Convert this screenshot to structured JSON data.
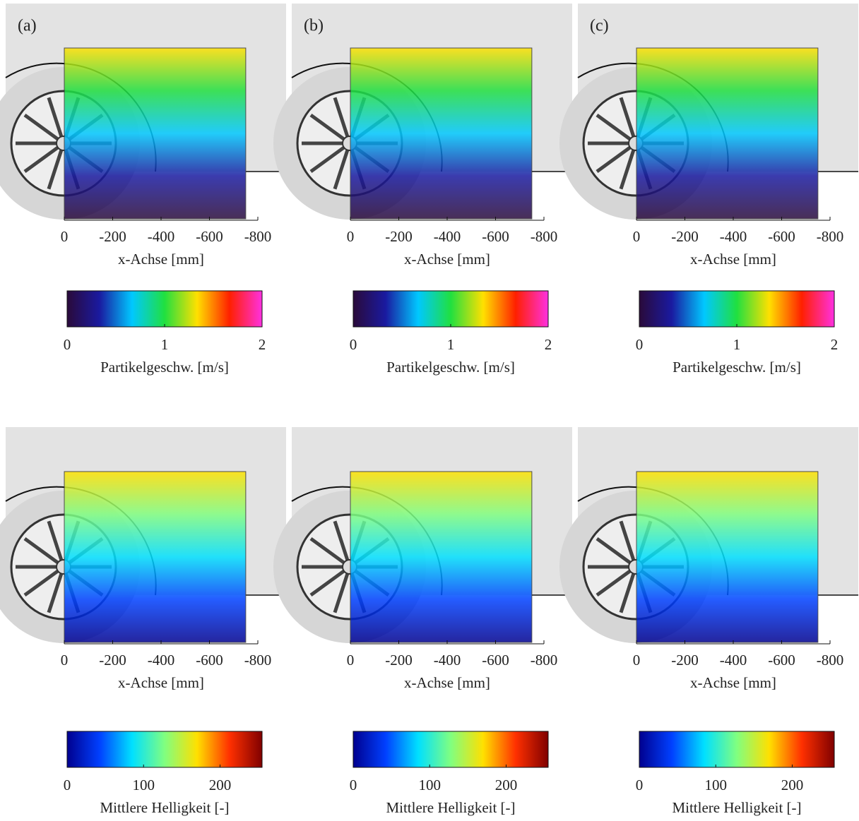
{
  "panels": [
    {
      "label": "(a)",
      "xlim": [
        0,
        -800
      ],
      "xticks": [
        0,
        -200,
        -400,
        -600,
        -800
      ],
      "xlabel": "x-Achse [mm]",
      "colorbar": {
        "clim": [
          0,
          2
        ],
        "ticks": [
          0,
          1,
          2
        ],
        "label": "Partikelgeschw. [m/s]",
        "colormap": [
          "#2a0a3a",
          "#1a1aa0",
          "#00c8ff",
          "#20e040",
          "#ffe000",
          "#ff2000",
          "#ff30e0"
        ]
      }
    },
    {
      "label": "(b)",
      "xlim": [
        0,
        -800
      ],
      "xticks": [
        0,
        -200,
        -400,
        -600,
        -800
      ],
      "xlabel": "x-Achse [mm]",
      "colorbar": {
        "clim": [
          0,
          2
        ],
        "ticks": [
          0,
          1,
          2
        ],
        "label": "Partikelgeschw. [m/s]",
        "colormap": [
          "#2a0a3a",
          "#1a1aa0",
          "#00c8ff",
          "#20e040",
          "#ffe000",
          "#ff2000",
          "#ff30e0"
        ]
      }
    },
    {
      "label": "(c)",
      "xlim": [
        0,
        -800
      ],
      "xticks": [
        0,
        -200,
        -400,
        -600,
        -800
      ],
      "xlabel": "x-Achse [mm]",
      "colorbar": {
        "clim": [
          0,
          2
        ],
        "ticks": [
          0,
          1,
          2
        ],
        "label": "Partikelgeschw. [m/s]",
        "colormap": [
          "#2a0a3a",
          "#1a1aa0",
          "#00c8ff",
          "#20e040",
          "#ffe000",
          "#ff2000",
          "#ff30e0"
        ]
      }
    },
    {
      "xlim": [
        0,
        -800
      ],
      "xticks": [
        0,
        -200,
        -400,
        -600,
        -800
      ],
      "xlabel": "x-Achse [mm]",
      "colorbar": {
        "clim": [
          0,
          255
        ],
        "ticks": [
          0,
          100,
          200
        ],
        "label": "Mittlere Helligkeit [-]",
        "colormap": [
          "#00008f",
          "#0040ff",
          "#00e0ff",
          "#80ff80",
          "#ffe000",
          "#ff3000",
          "#800000"
        ]
      }
    },
    {
      "xlim": [
        0,
        -800
      ],
      "xticks": [
        0,
        -200,
        -400,
        -600,
        -800
      ],
      "xlabel": "x-Achse [mm]",
      "colorbar": {
        "clim": [
          0,
          255
        ],
        "ticks": [
          0,
          100,
          200
        ],
        "label": "Mittlere Helligkeit [-]",
        "colormap": [
          "#00008f",
          "#0040ff",
          "#00e0ff",
          "#80ff80",
          "#ffe000",
          "#ff3000",
          "#800000"
        ]
      }
    },
    {
      "xlim": [
        0,
        -800
      ],
      "xticks": [
        0,
        -200,
        -400,
        -600,
        -800
      ],
      "xlabel": "x-Achse [mm]",
      "colorbar": {
        "clim": [
          0,
          255
        ],
        "ticks": [
          0,
          100,
          200
        ],
        "label": "Mittlere Helligkeit [-]",
        "colormap": [
          "#00008f",
          "#0040ff",
          "#00e0ff",
          "#80ff80",
          "#ffe000",
          "#ff3000",
          "#800000"
        ]
      }
    }
  ]
}
